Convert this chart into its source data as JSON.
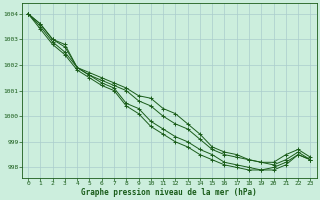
{
  "title": "Graphe pression niveau de la mer (hPa)",
  "bg_color": "#cceedd",
  "grid_color": "#aacccc",
  "line_color": "#1a5c1a",
  "xlim": [
    -0.5,
    23.5
  ],
  "ylim": [
    997.6,
    1004.4
  ],
  "yticks": [
    998,
    999,
    1000,
    1001,
    1002,
    1003,
    1004
  ],
  "xticks": [
    0,
    1,
    2,
    3,
    4,
    5,
    6,
    7,
    8,
    9,
    10,
    11,
    12,
    13,
    14,
    15,
    16,
    17,
    18,
    19,
    20,
    21,
    22,
    23
  ],
  "hours": [
    0,
    1,
    2,
    3,
    4,
    5,
    6,
    7,
    8,
    9,
    10,
    11,
    12,
    13,
    14,
    15,
    16,
    17,
    18,
    19,
    20,
    21,
    22,
    23
  ],
  "line1": [
    1004.0,
    1003.6,
    1003.0,
    1002.8,
    1001.9,
    1001.7,
    1001.5,
    1001.3,
    1001.1,
    1000.8,
    1000.7,
    1000.3,
    1000.1,
    999.7,
    999.3,
    998.8,
    998.6,
    998.5,
    998.3,
    998.2,
    998.2,
    998.5,
    998.7,
    998.4
  ],
  "line2": [
    1004.0,
    1003.6,
    1003.0,
    1002.7,
    1001.9,
    1001.6,
    1001.4,
    1001.2,
    1001.0,
    1000.6,
    1000.4,
    1000.0,
    999.7,
    999.5,
    999.1,
    998.7,
    998.5,
    998.4,
    998.3,
    998.2,
    998.1,
    998.3,
    998.6,
    998.3
  ],
  "line3": [
    1004.0,
    1003.5,
    1002.9,
    1002.5,
    1001.9,
    1001.6,
    1001.3,
    1001.1,
    1000.5,
    1000.3,
    999.8,
    999.5,
    999.2,
    999.0,
    998.7,
    998.5,
    998.2,
    998.1,
    998.0,
    997.9,
    998.0,
    998.2,
    998.5,
    998.3
  ],
  "line4": [
    1004.0,
    1003.4,
    1002.8,
    1002.4,
    1001.8,
    1001.5,
    1001.2,
    1001.0,
    1000.4,
    1000.1,
    999.6,
    999.3,
    999.0,
    998.8,
    998.5,
    998.3,
    998.1,
    998.0,
    997.9,
    997.9,
    997.9,
    998.1,
    998.5,
    998.3
  ]
}
